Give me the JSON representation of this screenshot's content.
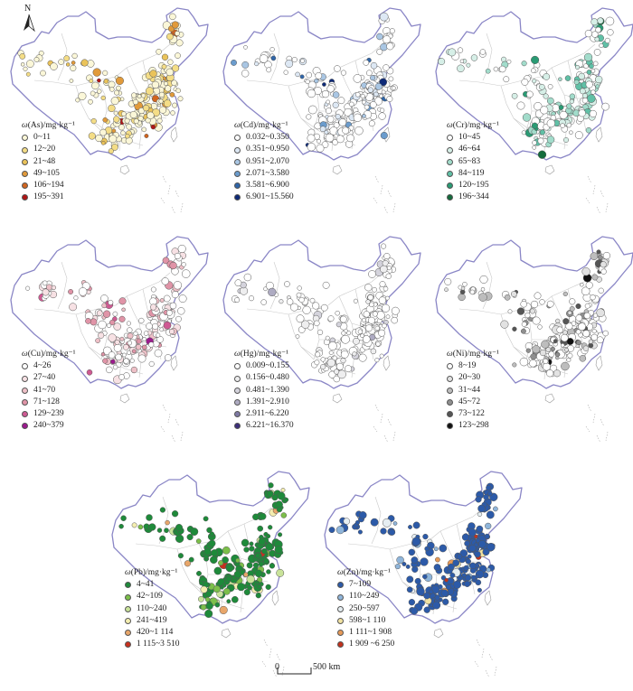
{
  "north_label": "N",
  "scale": {
    "zero": "0",
    "label": "500 km"
  },
  "colors": {
    "border": "#8a86c6",
    "province": "#c9c9c9",
    "dot_stroke": "#555555"
  },
  "panels": [
    {
      "id": "as",
      "title_elem": "ω",
      "title_rest": "(As)/mg·kg⁻¹",
      "classes": [
        {
          "label": "0~11",
          "color": "#fbf7d8"
        },
        {
          "label": "12~20",
          "color": "#f4dd86"
        },
        {
          "label": "21~48",
          "color": "#eac35a"
        },
        {
          "label": "49~105",
          "color": "#e19a3a"
        },
        {
          "label": "106~194",
          "color": "#d1651f"
        },
        {
          "label": "195~391",
          "color": "#b01515"
        }
      ]
    },
    {
      "id": "cd",
      "title_elem": "ω",
      "title_rest": "(Cd)/mg·kg⁻¹",
      "classes": [
        {
          "label": "0.032~0.350",
          "color": "#ffffff"
        },
        {
          "label": "0.351~0.950",
          "color": "#dde8f4"
        },
        {
          "label": "0.951~2.070",
          "color": "#a9c6e3"
        },
        {
          "label": "2.071~3.580",
          "color": "#6b9ccd"
        },
        {
          "label": "3.581~6.900",
          "color": "#2f65a8"
        },
        {
          "label": "6.901~15.560",
          "color": "#0e2a78"
        }
      ]
    },
    {
      "id": "cr",
      "title_elem": "ω",
      "title_rest": "(Cr)/mg·kg⁻¹",
      "classes": [
        {
          "label": "10~45",
          "color": "#ffffff"
        },
        {
          "label": "46~64",
          "color": "#d6efe7"
        },
        {
          "label": "65~83",
          "color": "#a2dccb"
        },
        {
          "label": "84~119",
          "color": "#60c0a6"
        },
        {
          "label": "120~195",
          "color": "#2a9b74"
        },
        {
          "label": "196~344",
          "color": "#146b3c"
        }
      ]
    },
    {
      "id": "cu",
      "title_elem": "ω",
      "title_rest": "(Cu)/mg·kg⁻¹",
      "classes": [
        {
          "label": "4~26",
          "color": "#ffffff"
        },
        {
          "label": "27~40",
          "color": "#f7e1e4"
        },
        {
          "label": "41~70",
          "color": "#eec0c7"
        },
        {
          "label": "71~128",
          "color": "#e094a7"
        },
        {
          "label": "129~239",
          "color": "#cf5a93"
        },
        {
          "label": "240~379",
          "color": "#9c1a8e"
        }
      ]
    },
    {
      "id": "hg",
      "title_elem": "ω",
      "title_rest": "(Hg)/mg·kg⁻¹",
      "classes": [
        {
          "label": "0.009~0.155",
          "color": "#ffffff"
        },
        {
          "label": "0.156~0.480",
          "color": "#eeeeef"
        },
        {
          "label": "0.481~1.390",
          "color": "#d4d3dc"
        },
        {
          "label": "1.391~2.910",
          "color": "#aeabc2"
        },
        {
          "label": "2.911~6.220",
          "color": "#7e79a3"
        },
        {
          "label": "6.221~16.370",
          "color": "#3c2f7a"
        }
      ]
    },
    {
      "id": "ni",
      "title_elem": "ω",
      "title_rest": "(Ni)/mg·kg⁻¹",
      "classes": [
        {
          "label": "8~19",
          "color": "#ffffff"
        },
        {
          "label": "20~30",
          "color": "#e2e2e2"
        },
        {
          "label": "31~44",
          "color": "#bdbdbd"
        },
        {
          "label": "45~72",
          "color": "#8f8f8f"
        },
        {
          "label": "73~122",
          "color": "#555555"
        },
        {
          "label": "123~298",
          "color": "#111111"
        }
      ]
    },
    {
      "id": "pb",
      "title_elem": "ω",
      "title_rest": "(Pb)/mg·kg⁻¹",
      "classes": [
        {
          "label": "4~41",
          "color": "#1e8a3a"
        },
        {
          "label": "42~109",
          "color": "#7cbf4a"
        },
        {
          "label": "110~240",
          "color": "#c9e39a"
        },
        {
          "label": "241~419",
          "color": "#f4eeb0"
        },
        {
          "label": "420~1 114",
          "color": "#e8a66a"
        },
        {
          "label": "1 115~3 510",
          "color": "#c8301e"
        }
      ]
    },
    {
      "id": "zn",
      "title_elem": "ω",
      "title_rest": "(Zn)/mg·kg⁻¹",
      "classes": [
        {
          "label": "7~109",
          "color": "#2c5aa8"
        },
        {
          "label": "110~249",
          "color": "#8fb5da"
        },
        {
          "label": "250~597",
          "color": "#e6eef2"
        },
        {
          "label": "598~1 110",
          "color": "#f1e2a2"
        },
        {
          "label": "1 111~1 908",
          "color": "#e79a58"
        },
        {
          "label": "1 909 ~6 250",
          "color": "#c3311c"
        }
      ]
    }
  ]
}
